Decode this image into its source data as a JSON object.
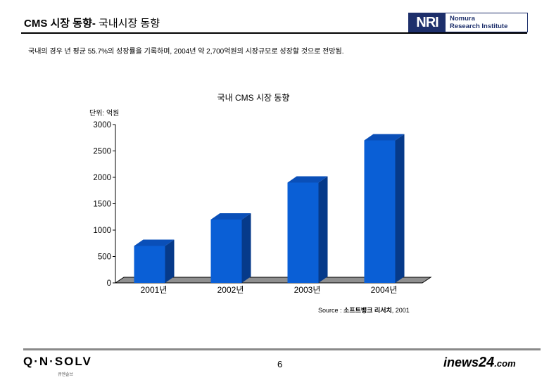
{
  "header": {
    "title_bold": "CMS 시장 동향",
    "title_dash": "- ",
    "title_rest": "국내시장 동향",
    "logo": {
      "mark": "NRI",
      "line1": "Nomura",
      "line2": "Research Institute"
    }
  },
  "summary": "국내의 경우 년 평균 55.7%의 성장률을 기록하며, 2004년 약 2,700억원의 시장규모로 성장할 것으로 전망됨.",
  "chart_data": {
    "type": "bar",
    "title": "국내 CMS 시장 동향",
    "unit_label": "단위: 억원",
    "categories": [
      "2001년",
      "2002년",
      "2003년",
      "2004년"
    ],
    "values": [
      700,
      1200,
      1900,
      2700
    ],
    "ylim": [
      0,
      3000
    ],
    "yticks": [
      0,
      500,
      1000,
      1500,
      2000,
      2500,
      3000
    ],
    "grid": false,
    "legend": "none",
    "bar_color": "#0a5fd6",
    "bar_side_color": "#063a8a",
    "bar_top_color": "#0a4fb8",
    "floor_color": "#8f8f8f"
  },
  "source": {
    "prefix": "Source : ",
    "name": "소프트뱅크 리서치",
    "year": ", 2001"
  },
  "footer": {
    "left_logo": "Q·N·SOLV",
    "left_logo_sub": "큐엔솔브",
    "page_number": "6",
    "right_logo": {
      "i": "i",
      "news": "news",
      "num": "24",
      "dotcom": ".com"
    }
  }
}
